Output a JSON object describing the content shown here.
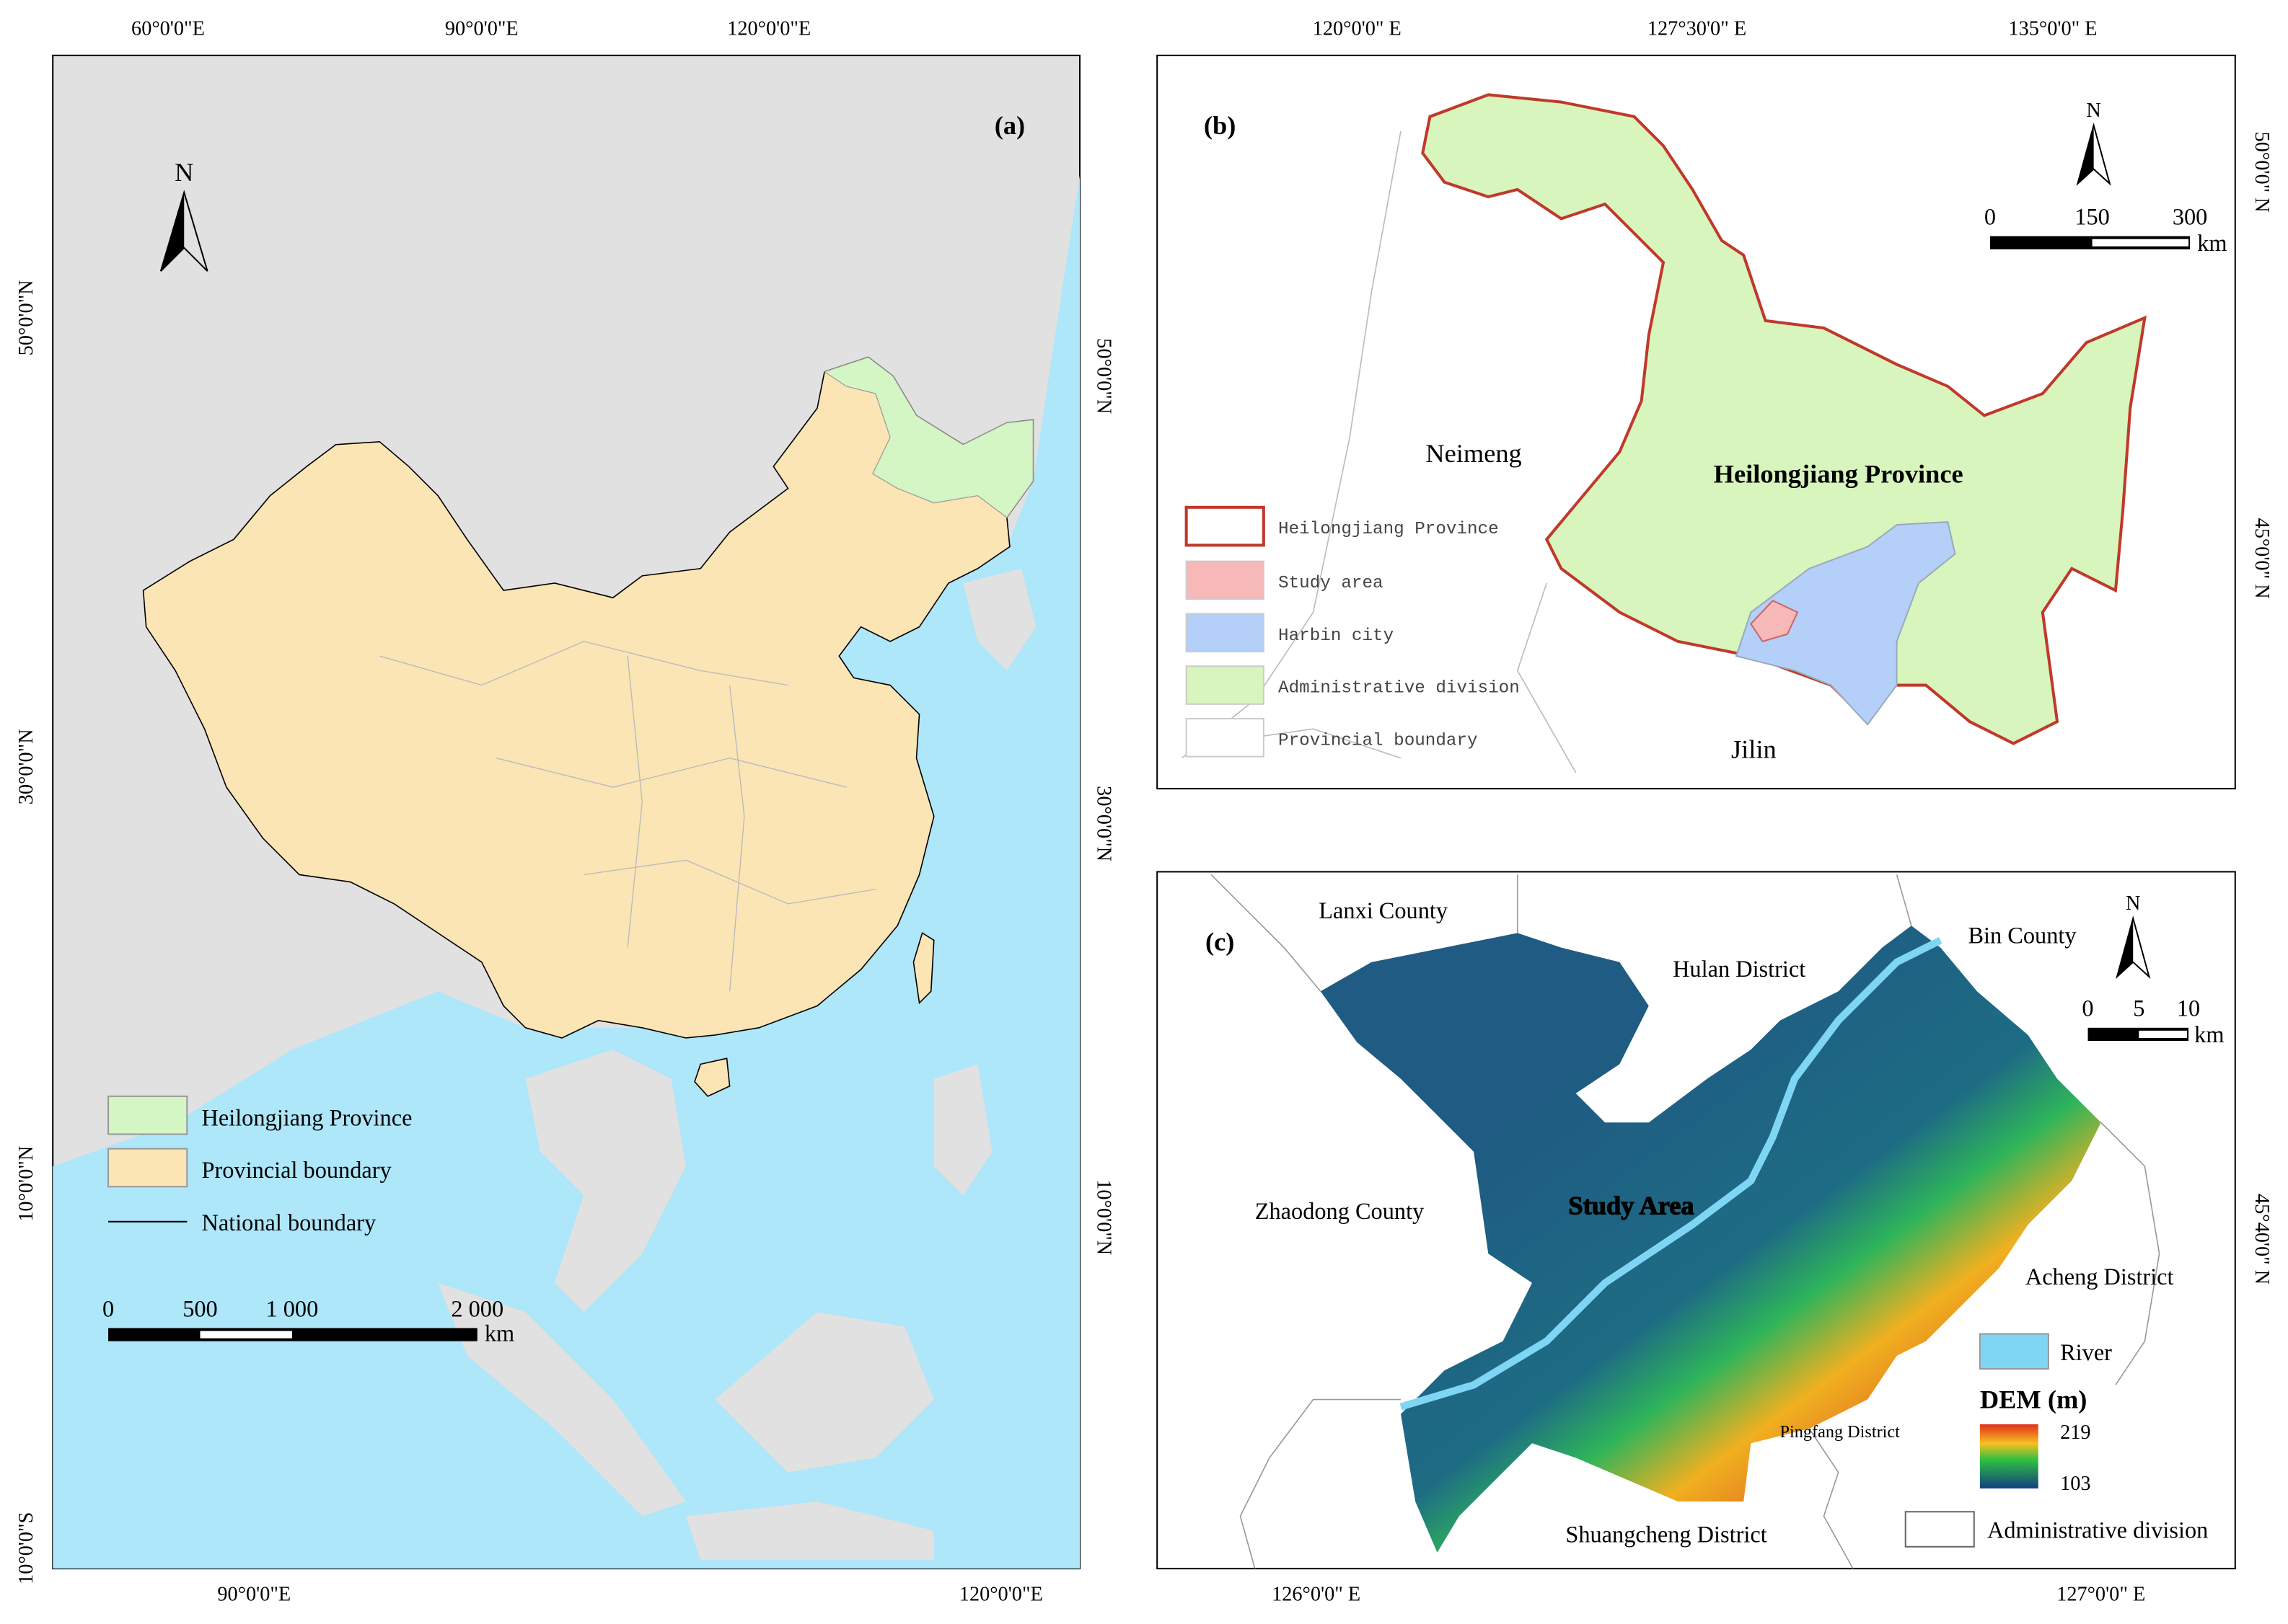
{
  "panels": [
    {
      "label": "(a)",
      "north": "N",
      "top_ticks": [
        "60°0'0\"E",
        "90°0'0\"E",
        "120°0'0\"E"
      ],
      "bottom_ticks": [
        "90°0'0\"E",
        "120°0'0\"E"
      ],
      "left_ticks": [
        "50°0'0\"N",
        "30°0'0\"N",
        "10°0'0\"N",
        "10°0'0\"S"
      ],
      "right_ticks": [
        "50°0'0\"N",
        "30°0'0\"N",
        "10°0'0\"N"
      ],
      "legend": [
        "Heilongjiang Province",
        "Provincial boundary",
        "National boundary"
      ],
      "scale": {
        "ticks": [
          "0",
          "500",
          "1 000",
          "2 000"
        ],
        "unit": "km"
      }
    },
    {
      "label": "(b)",
      "north": "N",
      "top_ticks": [
        "120°0'0\" E",
        "127°30'0\" E",
        "135°0'0\" E"
      ],
      "right_ticks": [
        "50°0'0\" N",
        "45°0'0\" N"
      ],
      "places": [
        "Neimeng",
        "Heilongjiang Province",
        "Jilin"
      ],
      "legend": [
        "Heilongjiang Province",
        "Study area",
        "Harbin city",
        "Administrative division",
        "Provincial boundary"
      ],
      "scale": {
        "ticks": [
          "0",
          "150",
          "300"
        ],
        "unit": "km"
      }
    },
    {
      "label": "(c)",
      "north": "N",
      "bottom_ticks": [
        "126°0'0\" E",
        "127°0'0\" E"
      ],
      "right_ticks": [
        "45°40'0\" N"
      ],
      "places": [
        "Lanxi County",
        "Hulan District",
        "Bin County",
        "Zhaodong County",
        "Study Area",
        "Acheng District",
        "Pingfang District",
        "Shuangcheng District"
      ],
      "legend": {
        "river": "River",
        "dem_title": "DEM (m)",
        "dem_max": "219",
        "dem_min": "103",
        "admin": "Administrative division"
      },
      "scale": {
        "ticks": [
          "0",
          "5",
          "10"
        ],
        "unit": "km"
      }
    }
  ]
}
